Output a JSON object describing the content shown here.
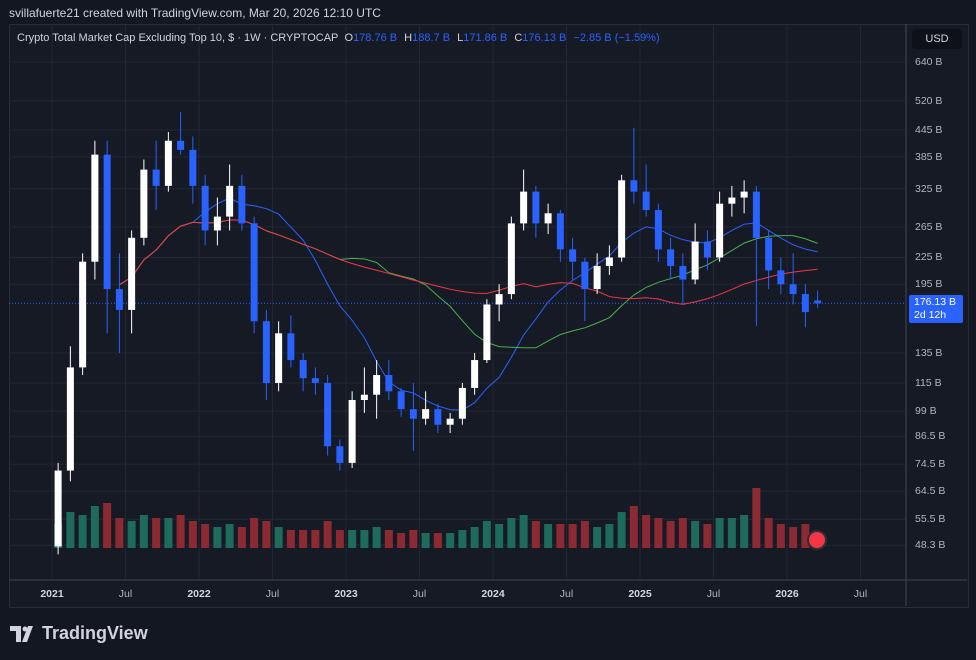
{
  "credit": "svillafuerte21 created with TradingView.com, Mar 20, 2026 12:10 UTC",
  "legend": {
    "title": "Crypto Total Market Cap Excluding Top 10, $ · 1W · CRYPTOCAP",
    "o_label": "O",
    "o": "178.76 B",
    "h_label": "H",
    "h": "188.7 B",
    "l_label": "L",
    "l": "171.86 B",
    "c_label": "C",
    "c": "176.13 B",
    "change": "−2.85 B (−1.59%)"
  },
  "currency": "USD",
  "price_tag": {
    "value": "176.13 B",
    "countdown": "2d 12h"
  },
  "logo": "TradingView",
  "colors": {
    "up": "#ffffff",
    "down": "#2962ff",
    "ma_fast": "#2962ff",
    "ma_mid": "#4caf50",
    "ma_slow": "#f23645",
    "vol_up": "#1e6b5c",
    "vol_down": "#8c2a33",
    "accent": "#2962ff"
  },
  "chart_data": {
    "type": "candlestick",
    "y_scale": "log",
    "ylim": [
      44,
      720
    ],
    "y_ticks": [
      "640 B",
      "520 B",
      "445 B",
      "385 B",
      "325 B",
      "265 B",
      "225 B",
      "195 B",
      "135 B",
      "115 B",
      "99 B",
      "86.5 B",
      "74.5 B",
      "64.5 B",
      "55.5 B",
      "48.3 B"
    ],
    "y_tick_values": [
      640,
      520,
      445,
      385,
      325,
      265,
      225,
      195,
      135,
      115,
      99,
      86.5,
      74.5,
      64.5,
      55.5,
      48.3
    ],
    "x_ticks": [
      {
        "label": "2021",
        "date": "2021-01"
      },
      {
        "label": "Jul",
        "date": "2021-07"
      },
      {
        "label": "2022",
        "date": "2022-01"
      },
      {
        "label": "Jul",
        "date": "2022-07"
      },
      {
        "label": "2023",
        "date": "2023-01"
      },
      {
        "label": "Jul",
        "date": "2023-07"
      },
      {
        "label": "2024",
        "date": "2024-01"
      },
      {
        "label": "Jul",
        "date": "2024-07"
      },
      {
        "label": "2025",
        "date": "2025-01"
      },
      {
        "label": "Jul",
        "date": "2025-07"
      },
      {
        "label": "2026",
        "date": "2026-01"
      },
      {
        "label": "Jul",
        "date": "2026-07"
      }
    ],
    "grid": true,
    "start": "2021-01",
    "ohlc_monthly_billions": [
      [
        48,
        75,
        46,
        72
      ],
      [
        72,
        140,
        68,
        125
      ],
      [
        125,
        230,
        120,
        220
      ],
      [
        220,
        420,
        200,
        390
      ],
      [
        390,
        420,
        150,
        190
      ],
      [
        190,
        230,
        135,
        170
      ],
      [
        170,
        260,
        150,
        250
      ],
      [
        250,
        380,
        240,
        360
      ],
      [
        360,
        420,
        290,
        330
      ],
      [
        330,
        440,
        320,
        420
      ],
      [
        420,
        490,
        390,
        400
      ],
      [
        400,
        430,
        300,
        330
      ],
      [
        330,
        350,
        240,
        260
      ],
      [
        260,
        310,
        240,
        280
      ],
      [
        280,
        370,
        260,
        330
      ],
      [
        330,
        350,
        260,
        270
      ],
      [
        270,
        280,
        150,
        160
      ],
      [
        160,
        170,
        105,
        115
      ],
      [
        115,
        160,
        110,
        150
      ],
      [
        150,
        165,
        125,
        130
      ],
      [
        130,
        135,
        110,
        118
      ],
      [
        118,
        125,
        108,
        115
      ],
      [
        115,
        120,
        78,
        82
      ],
      [
        82,
        85,
        72,
        75
      ],
      [
        75,
        110,
        73,
        105
      ],
      [
        105,
        125,
        98,
        108
      ],
      [
        108,
        130,
        95,
        120
      ],
      [
        120,
        130,
        105,
        110
      ],
      [
        110,
        112,
        96,
        100
      ],
      [
        100,
        115,
        80,
        95
      ],
      [
        95,
        110,
        92,
        100
      ],
      [
        100,
        103,
        88,
        92
      ],
      [
        92,
        98,
        88,
        95
      ],
      [
        95,
        115,
        92,
        112
      ],
      [
        112,
        135,
        108,
        130
      ],
      [
        130,
        180,
        128,
        175
      ],
      [
        175,
        195,
        160,
        185
      ],
      [
        185,
        280,
        180,
        270
      ],
      [
        270,
        360,
        260,
        320
      ],
      [
        320,
        330,
        250,
        270
      ],
      [
        270,
        300,
        255,
        285
      ],
      [
        285,
        290,
        220,
        235
      ],
      [
        235,
        250,
        200,
        220
      ],
      [
        220,
        225,
        160,
        190
      ],
      [
        190,
        230,
        185,
        215
      ],
      [
        215,
        240,
        205,
        225
      ],
      [
        225,
        350,
        220,
        340
      ],
      [
        340,
        450,
        300,
        320
      ],
      [
        320,
        370,
        280,
        290
      ],
      [
        290,
        300,
        220,
        235
      ],
      [
        235,
        250,
        200,
        215
      ],
      [
        215,
        230,
        175,
        200
      ],
      [
        200,
        270,
        195,
        245
      ],
      [
        245,
        260,
        210,
        225
      ],
      [
        225,
        320,
        220,
        300
      ],
      [
        300,
        330,
        280,
        310
      ],
      [
        310,
        340,
        285,
        320
      ],
      [
        320,
        330,
        156,
        250
      ],
      [
        250,
        260,
        190,
        210
      ],
      [
        210,
        225,
        185,
        195
      ],
      [
        195,
        230,
        175,
        185
      ],
      [
        185,
        195,
        155,
        168
      ],
      [
        178.76,
        188.7,
        171.86,
        176.13
      ]
    ],
    "volume_relative": [
      0.4,
      0.6,
      0.55,
      0.7,
      0.75,
      0.5,
      0.45,
      0.55,
      0.5,
      0.5,
      0.55,
      0.45,
      0.4,
      0.35,
      0.4,
      0.35,
      0.5,
      0.45,
      0.35,
      0.3,
      0.3,
      0.3,
      0.45,
      0.3,
      0.3,
      0.3,
      0.35,
      0.3,
      0.25,
      0.3,
      0.25,
      0.25,
      0.25,
      0.3,
      0.35,
      0.45,
      0.4,
      0.5,
      0.55,
      0.45,
      0.4,
      0.4,
      0.4,
      0.45,
      0.35,
      0.4,
      0.6,
      0.7,
      0.55,
      0.5,
      0.45,
      0.5,
      0.45,
      0.4,
      0.5,
      0.5,
      0.55,
      1.0,
      0.5,
      0.4,
      0.35,
      0.4,
      0.25
    ],
    "moving_averages_months": [
      12,
      24,
      36
    ]
  }
}
